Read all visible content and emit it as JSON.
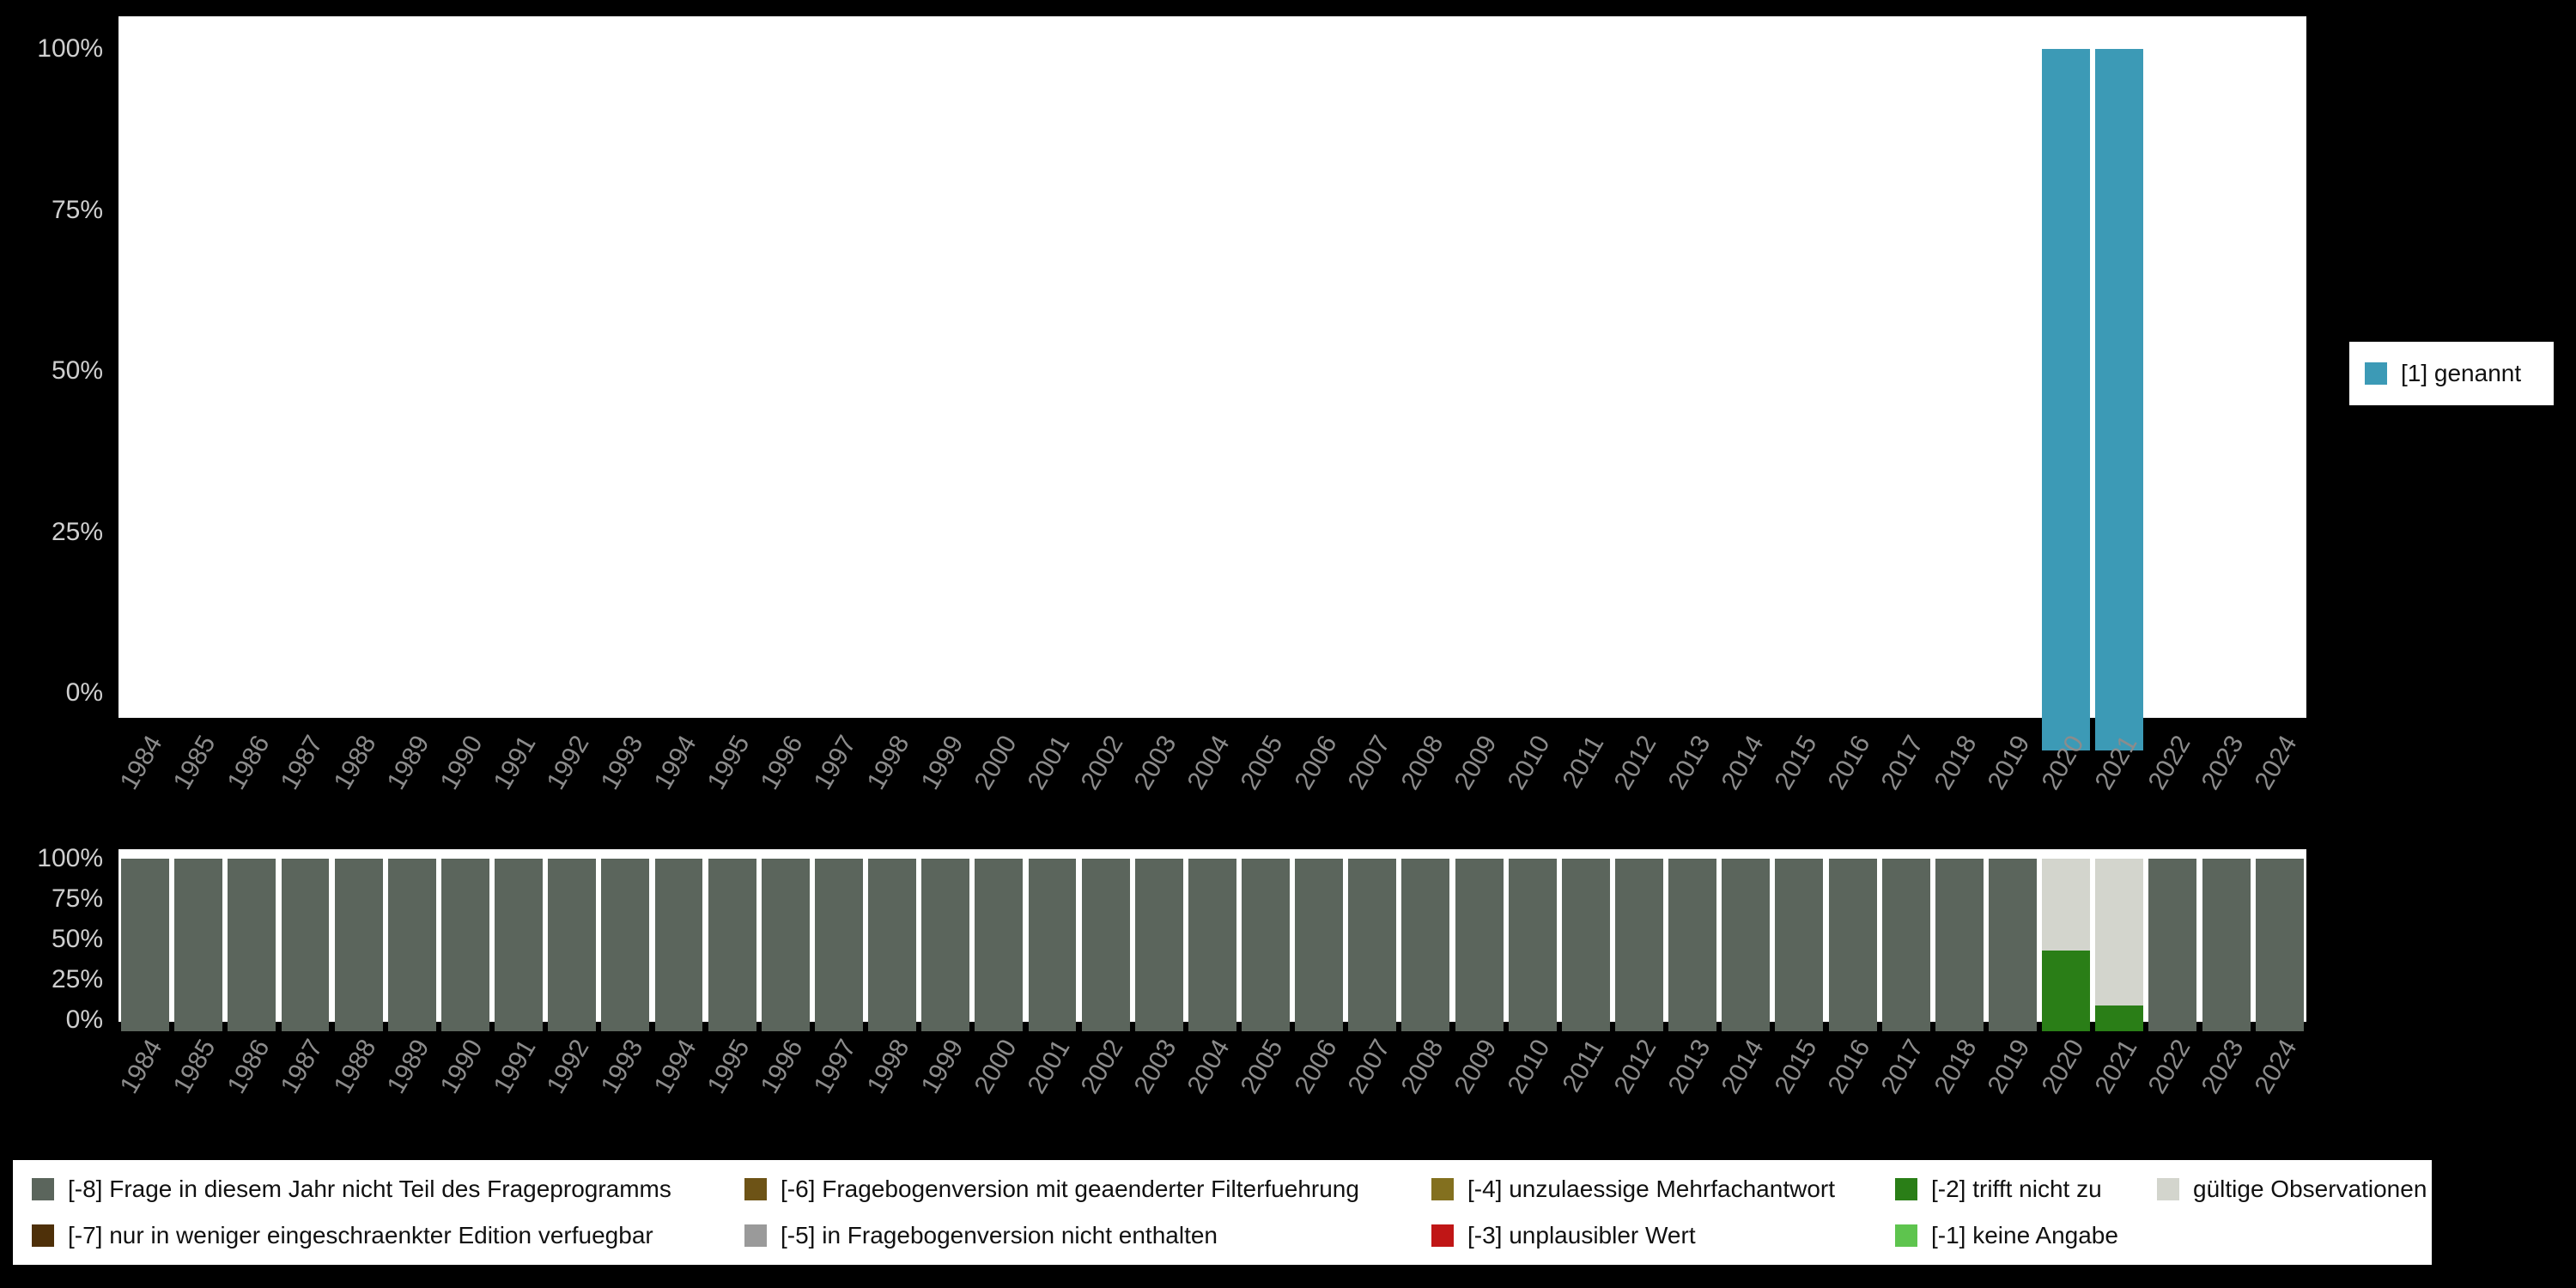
{
  "page": {
    "background_color": "#000000",
    "panel_color": "#ffffff",
    "axis_tick_color": "#cfcfcf",
    "year_label_color": "#8c8c8c"
  },
  "top_legend": {
    "label": "[1] genannt",
    "color": "#3c9ab6"
  },
  "bottom_legend": {
    "items": [
      {
        "label": "[-8] Frage in diesem Jahr nicht Teil des Frageprogramms",
        "color": "#5b655c"
      },
      {
        "label": "[-6] Fragebogenversion mit geaenderter Filterfuehrung",
        "color": "#6d5316"
      },
      {
        "label": "[-4] unzulaessige Mehrfachantwort",
        "color": "#83701f"
      },
      {
        "label": "[-2] trifft nicht zu",
        "color": "#2a7e17"
      },
      {
        "label": "gültige Observationen",
        "color": "#d3d5cd"
      },
      {
        "label": "[-7] nur in weniger eingeschraenkter Edition verfuegbar",
        "color": "#4e3009"
      },
      {
        "label": "[-5] in Fragebogenversion nicht enthalten",
        "color": "#9a9a9a"
      },
      {
        "label": "[-3] unplausibler Wert",
        "color": "#c01616"
      },
      {
        "label": "[-1] keine Angabe",
        "color": "#5ec44e"
      }
    ]
  },
  "chart_data": [
    {
      "id": "frequencies",
      "type": "bar",
      "stacked": true,
      "title": "",
      "xlabel": "",
      "ylabel": "",
      "ylim": [
        0,
        100
      ],
      "grid": false,
      "legend_position": "right",
      "yticks": [
        {
          "label": "100%",
          "value": 100
        },
        {
          "label": "75%",
          "value": 75
        },
        {
          "label": "50%",
          "value": 50
        },
        {
          "label": "25%",
          "value": 25
        },
        {
          "label": "0%",
          "value": 0
        }
      ],
      "categories": [
        "1984",
        "1985",
        "1986",
        "1987",
        "1988",
        "1989",
        "1990",
        "1991",
        "1992",
        "1993",
        "1994",
        "1995",
        "1996",
        "1997",
        "1998",
        "1999",
        "2000",
        "2001",
        "2002",
        "2003",
        "2004",
        "2005",
        "2006",
        "2007",
        "2008",
        "2009",
        "2010",
        "2011",
        "2012",
        "2013",
        "2014",
        "2015",
        "2016",
        "2017",
        "2018",
        "2019",
        "2020",
        "2021",
        "2022",
        "2023",
        "2024"
      ],
      "series": [
        {
          "name": "[1] genannt",
          "color": "#3c9ab6",
          "values": [
            0,
            0,
            0,
            0,
            0,
            0,
            0,
            0,
            0,
            0,
            0,
            0,
            0,
            0,
            0,
            0,
            0,
            0,
            0,
            0,
            0,
            0,
            0,
            0,
            0,
            0,
            0,
            0,
            0,
            0,
            0,
            0,
            0,
            0,
            0,
            0,
            100,
            100,
            0,
            0,
            0
          ]
        }
      ]
    },
    {
      "id": "missings",
      "type": "bar",
      "stacked": true,
      "title": "",
      "xlabel": "",
      "ylabel": "",
      "ylim": [
        0,
        100
      ],
      "grid": false,
      "legend_position": "bottom",
      "yticks": [
        {
          "label": "100%",
          "value": 100
        },
        {
          "label": "75%",
          "value": 75
        },
        {
          "label": "50%",
          "value": 50
        },
        {
          "label": "25%",
          "value": 25
        },
        {
          "label": "0%",
          "value": 0
        }
      ],
      "categories": [
        "1984",
        "1985",
        "1986",
        "1987",
        "1988",
        "1989",
        "1990",
        "1991",
        "1992",
        "1993",
        "1994",
        "1995",
        "1996",
        "1997",
        "1998",
        "1999",
        "2000",
        "2001",
        "2002",
        "2003",
        "2004",
        "2005",
        "2006",
        "2007",
        "2008",
        "2009",
        "2010",
        "2011",
        "2012",
        "2013",
        "2014",
        "2015",
        "2016",
        "2017",
        "2018",
        "2019",
        "2020",
        "2021",
        "2022",
        "2023",
        "2024"
      ],
      "series": [
        {
          "name": "[-2] trifft nicht zu",
          "color": "#2a7e17",
          "values": [
            0,
            0,
            0,
            0,
            0,
            0,
            0,
            0,
            0,
            0,
            0,
            0,
            0,
            0,
            0,
            0,
            0,
            0,
            0,
            0,
            0,
            0,
            0,
            0,
            0,
            0,
            0,
            0,
            0,
            0,
            0,
            0,
            0,
            0,
            0,
            0,
            47,
            15,
            0,
            0,
            0
          ]
        },
        {
          "name": "gültige Observationen",
          "color": "#d3d5cd",
          "values": [
            0,
            0,
            0,
            0,
            0,
            0,
            0,
            0,
            0,
            0,
            0,
            0,
            0,
            0,
            0,
            0,
            0,
            0,
            0,
            0,
            0,
            0,
            0,
            0,
            0,
            0,
            0,
            0,
            0,
            0,
            0,
            0,
            0,
            0,
            0,
            0,
            53,
            85,
            0,
            0,
            0
          ]
        },
        {
          "name": "[-8] Frage in diesem Jahr nicht Teil des Frageprogramms",
          "color": "#5b655c",
          "values": [
            100,
            100,
            100,
            100,
            100,
            100,
            100,
            100,
            100,
            100,
            100,
            100,
            100,
            100,
            100,
            100,
            100,
            100,
            100,
            100,
            100,
            100,
            100,
            100,
            100,
            100,
            100,
            100,
            100,
            100,
            100,
            100,
            100,
            100,
            100,
            100,
            0,
            0,
            100,
            100,
            100
          ]
        }
      ]
    }
  ]
}
